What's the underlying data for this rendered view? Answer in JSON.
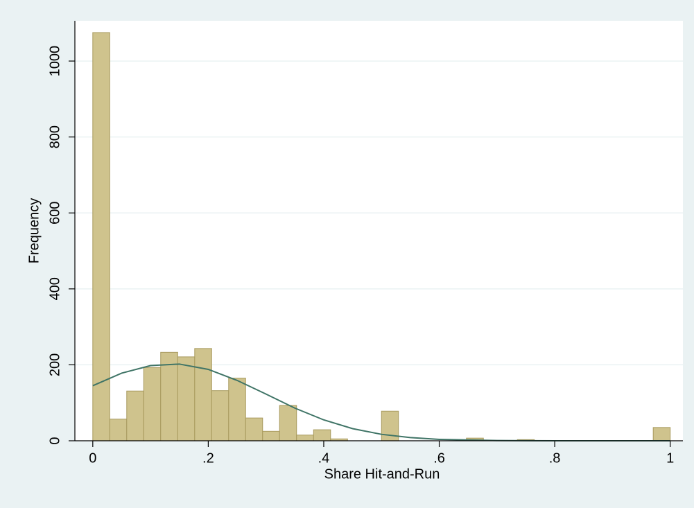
{
  "chart_data": {
    "type": "histogram",
    "x_label": "Share Hit-and-Run",
    "y_label": "Frequency",
    "bins": [
      0,
      0.0294,
      0.0588,
      0.0882,
      0.1176,
      0.1471,
      0.1765,
      0.2059,
      0.2353,
      0.2647,
      0.2941,
      0.3235,
      0.3529,
      0.3824,
      0.4118,
      0.4412,
      0.4706,
      0.5,
      0.5294,
      0.5588,
      0.5882,
      0.6176,
      0.6471,
      0.6765,
      0.7059,
      0.7353,
      0.7647,
      0.7941,
      0.8235,
      0.8529,
      0.8824,
      0.9118,
      0.9412,
      0.9706,
      1
    ],
    "counts": [
      1075,
      57,
      131,
      193,
      233,
      221,
      243,
      132,
      165,
      60,
      25,
      93,
      15,
      29,
      5,
      0,
      0,
      78,
      0,
      0,
      0,
      0,
      7,
      0,
      0,
      3,
      0,
      0,
      0,
      0,
      0,
      0,
      0,
      35
    ],
    "color": "#cfc38d",
    "edge_color": "#a89a5e",
    "density_curve": {
      "color": "#3f7466",
      "x": [
        0,
        0.05,
        0.1,
        0.15,
        0.2,
        0.25,
        0.3,
        0.35,
        0.4,
        0.45,
        0.5,
        0.55,
        0.6,
        0.7,
        0.8,
        1
      ],
      "y": [
        145,
        178,
        198,
        202,
        188,
        159,
        123,
        86,
        55,
        32,
        17,
        8.5,
        3.7,
        0.6,
        0.06,
        0
      ]
    },
    "xlim": [
      -0.031,
      1.022
    ],
    "ylim": [
      0,
      1106
    ],
    "xticks": [
      0,
      {
        "value": 0.2,
        "label": ".2"
      },
      {
        "value": 0.4,
        "label": ".4"
      },
      {
        "value": 0.6,
        "label": ".6"
      },
      {
        "value": 0.8,
        "label": ".8"
      },
      1
    ],
    "yticks": [
      0,
      200,
      400,
      600,
      800,
      1000
    ],
    "grid": true
  }
}
